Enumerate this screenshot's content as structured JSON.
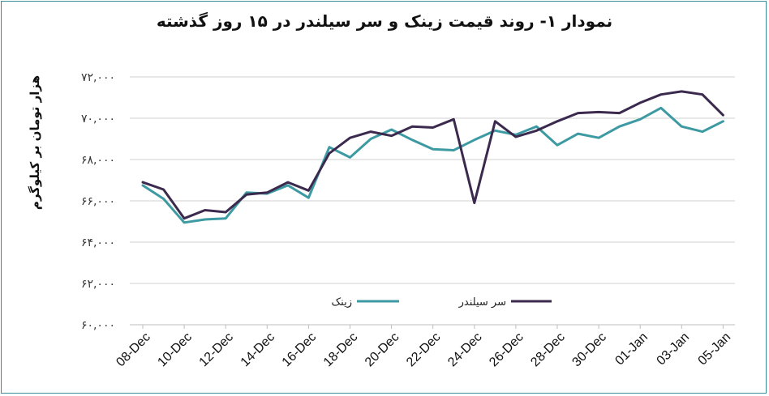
{
  "chart_data": {
    "type": "line",
    "title": "نمودار ۱- روند قیمت زینک و سر سیلندر در ۱۵ روز گذشته",
    "ylabel": "هزار تومان بر کیلوگرم",
    "xlabel": "",
    "ylim": [
      60000,
      72000
    ],
    "ytick_values": [
      60000,
      62000,
      64000,
      66000,
      68000,
      70000,
      72000
    ],
    "ytick_labels": [
      "۶۰,۰۰۰",
      "۶۲,۰۰۰",
      "۶۴,۰۰۰",
      "۶۶,۰۰۰",
      "۶۸,۰۰۰",
      "۷۰,۰۰۰",
      "۷۲,۰۰۰"
    ],
    "xtick_labels": [
      "08-Dec",
      "10-Dec",
      "12-Dec",
      "14-Dec",
      "16-Dec",
      "18-Dec",
      "20-Dec",
      "22-Dec",
      "24-Dec",
      "26-Dec",
      "28-Dec",
      "30-Dec",
      "01-Jan",
      "03-Jan",
      "05-Jan"
    ],
    "grid": true,
    "legend": "inside-bottom",
    "series": [
      {
        "name": "زینک",
        "color": "#3d9aa3",
        "values": [
          66750,
          66100,
          64950,
          65100,
          65150,
          66400,
          66350,
          66750,
          66150,
          68600,
          68100,
          69000,
          69450,
          68950,
          68500,
          68450,
          68950,
          69400,
          69200,
          69600,
          68700,
          69250,
          69050,
          69600,
          69950,
          70500,
          69600,
          69350,
          69850
        ]
      },
      {
        "name": "سر سیلندر",
        "color": "#3b2a4e",
        "values": [
          66900,
          66550,
          65150,
          65550,
          65450,
          66300,
          66400,
          66900,
          66500,
          68300,
          69050,
          69350,
          69150,
          69600,
          69550,
          69950,
          65900,
          69850,
          69100,
          69400,
          69850,
          70250,
          70300,
          70250,
          70750,
          71150,
          71300,
          71150,
          70150
        ]
      }
    ]
  }
}
